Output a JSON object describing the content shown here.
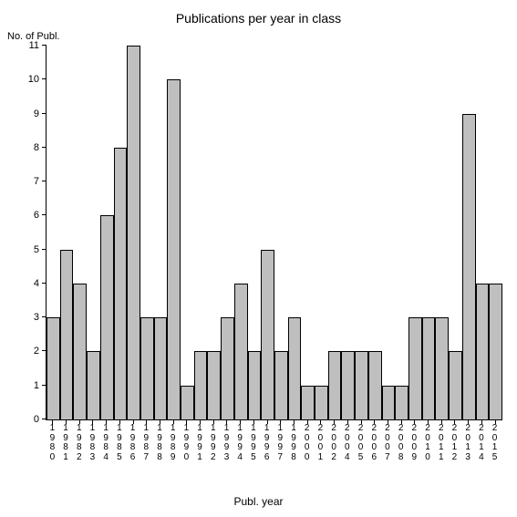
{
  "chart": {
    "type": "bar",
    "title": "Publications per year in class",
    "title_fontsize": 14,
    "y_axis_label": "No. of Publ.",
    "x_axis_label": "Publ. year",
    "label_fontsize": 12,
    "tick_fontsize": 11,
    "background_color": "#ffffff",
    "axis_color": "#000000",
    "bar_fill_color": "#bfbfbf",
    "bar_border_color": "#000000",
    "bar_width": 1.0,
    "ylim": [
      0,
      11
    ],
    "ytick_step": 1,
    "yticks": [
      0,
      1,
      2,
      3,
      4,
      5,
      6,
      7,
      8,
      9,
      10,
      11
    ],
    "categories": [
      "1980",
      "1981",
      "1982",
      "1983",
      "1984",
      "1985",
      "1986",
      "1987",
      "1988",
      "1989",
      "1990",
      "1991",
      "1992",
      "1993",
      "1994",
      "1995",
      "1996",
      "1997",
      "1998",
      "2000",
      "2001",
      "2002",
      "2004",
      "2005",
      "2006",
      "2007",
      "2008",
      "2009",
      "2010",
      "2011",
      "2012",
      "2013",
      "2014",
      "2015"
    ],
    "values": [
      3,
      5,
      4,
      2,
      6,
      8,
      11,
      3,
      3,
      10,
      1,
      2,
      2,
      3,
      4,
      2,
      5,
      2,
      3,
      1,
      1,
      2,
      2,
      2,
      2,
      1,
      1,
      3,
      3,
      3,
      2,
      9,
      4,
      4
    ]
  }
}
